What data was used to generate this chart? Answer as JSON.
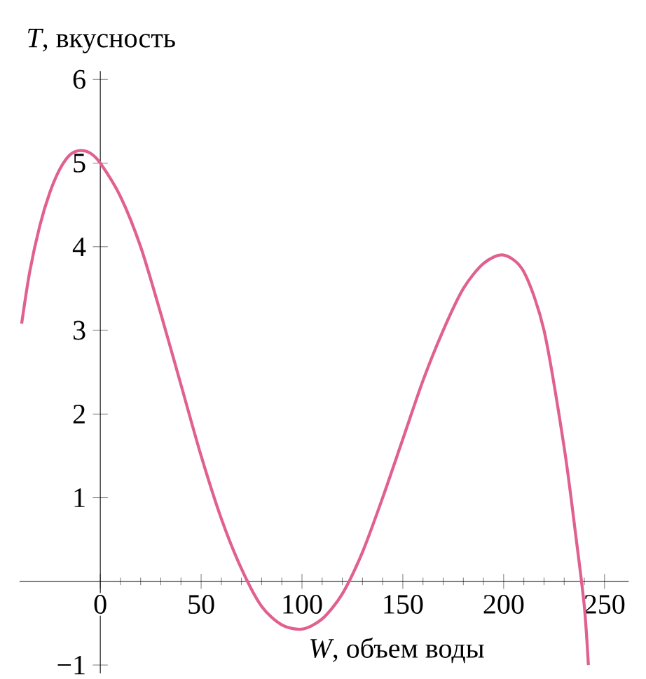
{
  "chart_data": {
    "type": "line",
    "xlabel": "*W*, объем воды",
    "ylabel": "*T*, вкусность",
    "x": [
      -39,
      -35,
      -30,
      -25,
      -20,
      -15,
      -10,
      -5,
      0,
      10,
      20,
      30,
      40,
      50,
      60,
      70,
      80,
      90,
      100,
      110,
      120,
      130,
      140,
      150,
      160,
      170,
      180,
      190,
      200,
      210,
      220,
      230,
      236,
      240,
      242
    ],
    "values": [
      3.08,
      3.7,
      4.25,
      4.65,
      4.93,
      5.1,
      5.15,
      5.12,
      5.0,
      4.6,
      4.0,
      3.2,
      2.35,
      1.5,
      0.75,
      0.15,
      -0.3,
      -0.52,
      -0.57,
      -0.45,
      -0.15,
      0.35,
      1.0,
      1.7,
      2.4,
      3.0,
      3.5,
      3.8,
      3.9,
      3.7,
      3.0,
      1.6,
      0.5,
      -0.3,
      -1.0
    ],
    "color": "#e0608f",
    "xlim": [
      -40,
      262
    ],
    "ylim": [
      -1.1,
      6.1
    ],
    "xticks": [
      0,
      50,
      100,
      150,
      200,
      250
    ],
    "yticks": [
      {
        "value": -1,
        "label": "−1"
      },
      1,
      2,
      3,
      4,
      5,
      6
    ]
  }
}
